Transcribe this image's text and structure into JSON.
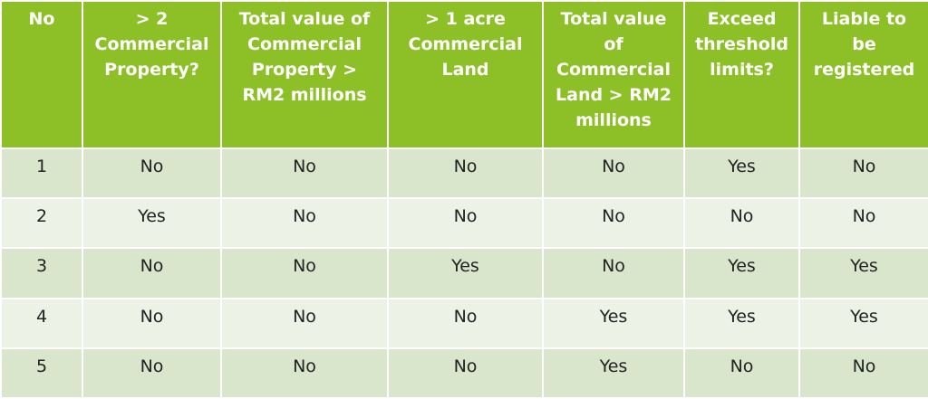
{
  "headers": [
    "No",
    "> 2\nCommercial\nProperty?",
    "Total value of\nCommercial\nProperty  >\nRM2 millions",
    "> 1 acre\nCommercial\nLand",
    "Total value\nof\nCommercial\nLand  > RM2\nmillions",
    "Exceed\nthreshold\nlimits?",
    "Liable to\nbe\nregistered"
  ],
  "rows": [
    [
      "1",
      "No",
      "No",
      "No",
      "No",
      "Yes",
      "No"
    ],
    [
      "2",
      "Yes",
      "No",
      "No",
      "No",
      "No",
      "No"
    ],
    [
      "3",
      "No",
      "No",
      "Yes",
      "No",
      "Yes",
      "Yes"
    ],
    [
      "4",
      "No",
      "No",
      "No",
      "Yes",
      "Yes",
      "Yes"
    ],
    [
      "5",
      "No",
      "No",
      "No",
      "Yes",
      "No",
      "No"
    ]
  ],
  "colors": {
    "header_bg": "#8dc026",
    "row_odd_bg": "#d9e6cc",
    "row_even_bg": "#ecf2e6"
  }
}
